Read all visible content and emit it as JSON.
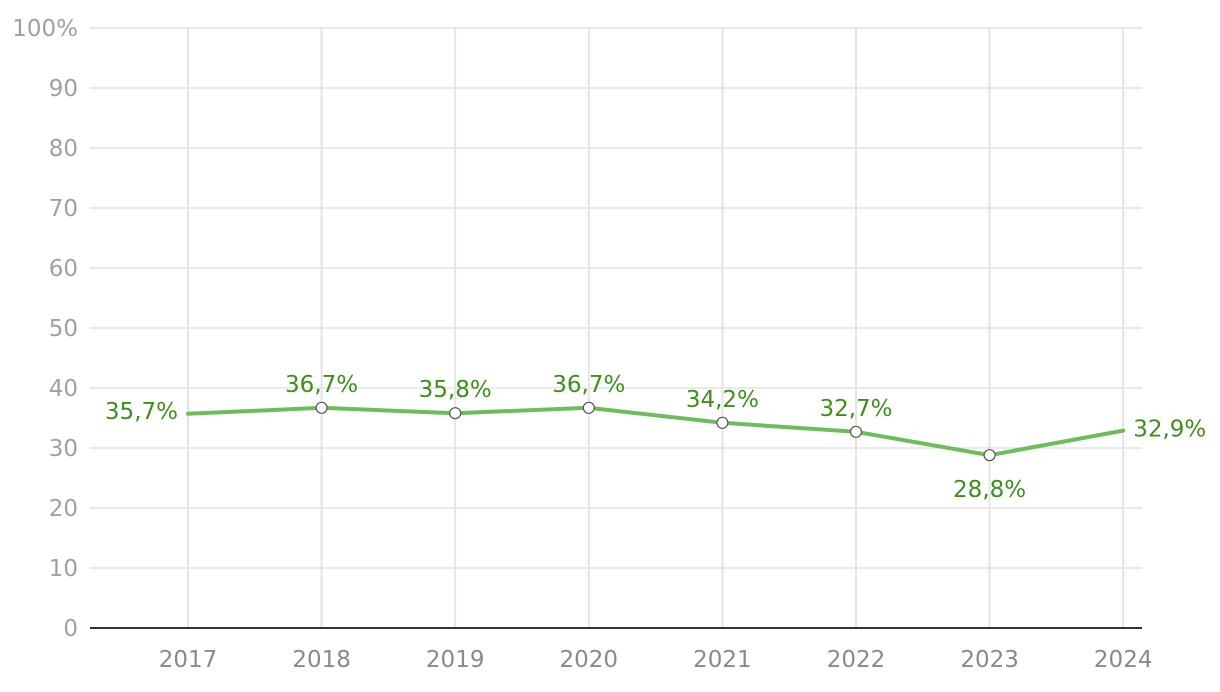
{
  "chart_data": {
    "type": "line",
    "title": "",
    "xlabel": "",
    "ylabel": "",
    "categories": [
      "2017",
      "2018",
      "2019",
      "2020",
      "2021",
      "2022",
      "2023",
      "2024"
    ],
    "series": [
      {
        "name": "Share",
        "values": [
          35.7,
          36.7,
          35.8,
          36.7,
          34.2,
          32.7,
          28.8,
          32.9
        ],
        "labels": [
          "35,7%",
          "36,7%",
          "35,8%",
          "36,7%",
          "34,2%",
          "32,7%",
          "28,8%",
          "32,9%"
        ],
        "label_positions": [
          "left",
          "above",
          "above",
          "above",
          "above",
          "above",
          "below",
          "right"
        ],
        "markers": [
          false,
          true,
          true,
          true,
          true,
          true,
          true,
          false
        ]
      }
    ],
    "ylim": [
      0,
      100
    ],
    "yticks": [
      0,
      10,
      20,
      30,
      40,
      50,
      60,
      70,
      80,
      90,
      100
    ],
    "ytick_labels": [
      "0",
      "10",
      "20",
      "30",
      "40",
      "50",
      "60",
      "70",
      "80",
      "90",
      "100%"
    ],
    "grid": true,
    "legend": "none"
  },
  "colors": {
    "line": "#6ebd5a",
    "label": "#3f8f1d",
    "marker_stroke": "#555555"
  }
}
